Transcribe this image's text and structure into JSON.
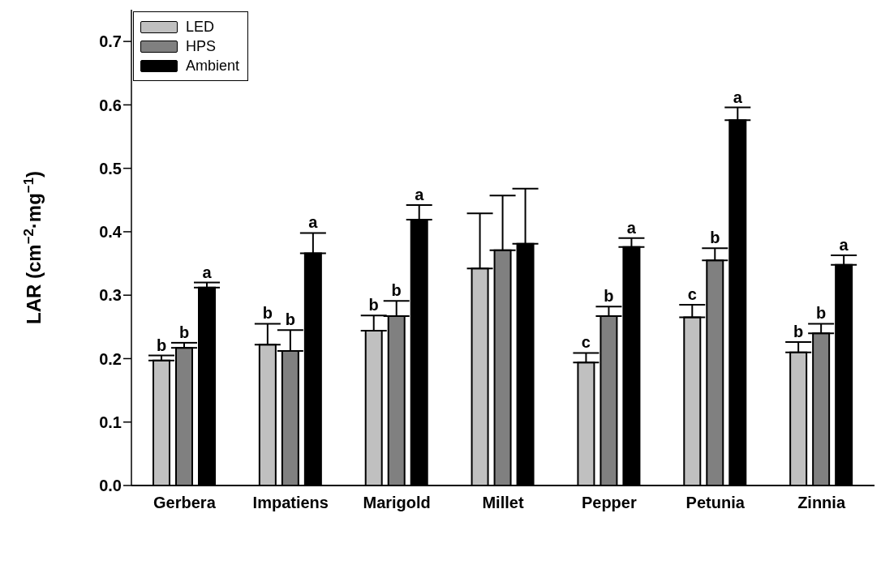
{
  "chart_data": {
    "type": "bar",
    "ylabel": "LAR (cm$^{−2}$·mg$^{−1}$)",
    "categories": [
      "Gerbera",
      "Impatiens",
      "Marigold",
      "Millet",
      "Pepper",
      "Petunia",
      "Zinnia"
    ],
    "series": [
      {
        "name": "LED",
        "color": "#c0c0c0",
        "values": [
          0.197,
          0.222,
          0.244,
          0.342,
          0.194,
          0.265,
          0.21
        ],
        "errors": [
          [
            0.197,
            0.205
          ],
          [
            0.222,
            0.255
          ],
          [
            0.244,
            0.268
          ],
          [
            0.342,
            0.429
          ],
          [
            0.194,
            0.209
          ],
          [
            0.265,
            0.285
          ],
          [
            0.21,
            0.226
          ]
        ],
        "value_labels": [
          "b",
          "b",
          "b",
          null,
          "c",
          "c",
          "b"
        ]
      },
      {
        "name": "HPS",
        "color": "#808080",
        "values": [
          0.217,
          0.212,
          0.267,
          0.371,
          0.267,
          0.355,
          0.24
        ],
        "errors": [
          [
            0.217,
            0.225
          ],
          [
            0.212,
            0.245
          ],
          [
            0.267,
            0.291
          ],
          [
            0.371,
            0.457
          ],
          [
            0.267,
            0.282
          ],
          [
            0.355,
            0.374
          ],
          [
            0.24,
            0.255
          ]
        ],
        "value_labels": [
          "b",
          "b",
          "b",
          null,
          "b",
          "b",
          "b"
        ]
      },
      {
        "name": "Ambient",
        "color": "#000000",
        "values": [
          0.312,
          0.366,
          0.419,
          0.381,
          0.376,
          0.576,
          0.348
        ],
        "errors": [
          [
            0.312,
            0.32
          ],
          [
            0.366,
            0.398
          ],
          [
            0.419,
            0.442
          ],
          [
            0.381,
            0.468
          ],
          [
            0.376,
            0.39
          ],
          [
            0.576,
            0.596
          ],
          [
            0.348,
            0.363
          ]
        ],
        "value_labels": [
          "a",
          "a",
          "a",
          null,
          "a",
          "a",
          "a"
        ]
      }
    ],
    "ylim": [
      0,
      0.75
    ],
    "yticks": [
      {
        "value": 0,
        "label": "0.0"
      },
      0.1,
      0.2,
      0.3,
      0.4,
      0.5,
      0.6,
      0.7
    ],
    "grid": false,
    "legend": "top left"
  }
}
